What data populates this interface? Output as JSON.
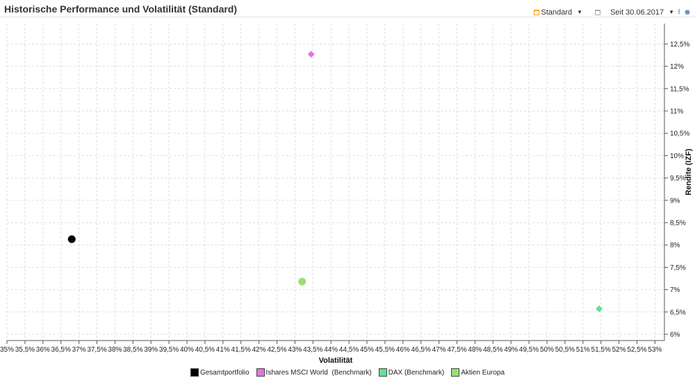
{
  "header": {
    "title": "Historische Performance und Volatilität (Standard)",
    "view_label": "Standard",
    "period_label": "Seit 30.06.2017",
    "icons": [
      "calendar-icon",
      "dropdown-caret-icon",
      "calendar-icon",
      "dropdown-caret-icon",
      "download-icon",
      "gear-icon"
    ]
  },
  "chart_data": {
    "type": "scatter",
    "title": "",
    "xlabel": "Volatilität",
    "ylabel": "Rendite (IZF)",
    "xlim": [
      35,
      53
    ],
    "ylim": [
      6,
      12.5
    ],
    "x_ticks": [
      "35%",
      "35,5%",
      "36%",
      "36,5%",
      "37%",
      "37,5%",
      "38%",
      "38,5%",
      "39%",
      "39,5%",
      "40%",
      "40,5%",
      "41%",
      "41,5%",
      "42%",
      "42,5%",
      "43%",
      "43,5%",
      "44%",
      "44,5%",
      "45%",
      "45,5%",
      "46%",
      "46,5%",
      "47%",
      "47,5%",
      "48%",
      "48,5%",
      "49%",
      "49,5%",
      "50%",
      "50,5%",
      "51%",
      "51,5%",
      "52%",
      "52,5%",
      "53%"
    ],
    "y_ticks": [
      "6%",
      "6,5%",
      "7%",
      "7,5%",
      "8%",
      "8,5%",
      "9%",
      "9,5%",
      "10%",
      "10,5%",
      "11%",
      "11,5%",
      "12%",
      "12,5%"
    ],
    "grid": true,
    "legend_position": "bottom",
    "series": [
      {
        "name": "Gesamtportfolio",
        "x": 36.8,
        "y": 8.13,
        "marker": "circle",
        "color": "#000000"
      },
      {
        "name": "Ishares MSCI World  (Benchmark)",
        "x": 43.45,
        "y": 12.27,
        "marker": "diamond",
        "color": "#dd77dd"
      },
      {
        "name": "DAX (Benchmark)",
        "x": 51.45,
        "y": 6.57,
        "marker": "diamond",
        "color": "#66dd99"
      },
      {
        "name": "Aktien Europa",
        "x": 43.2,
        "y": 7.18,
        "marker": "circle",
        "color": "#99e077"
      }
    ]
  }
}
